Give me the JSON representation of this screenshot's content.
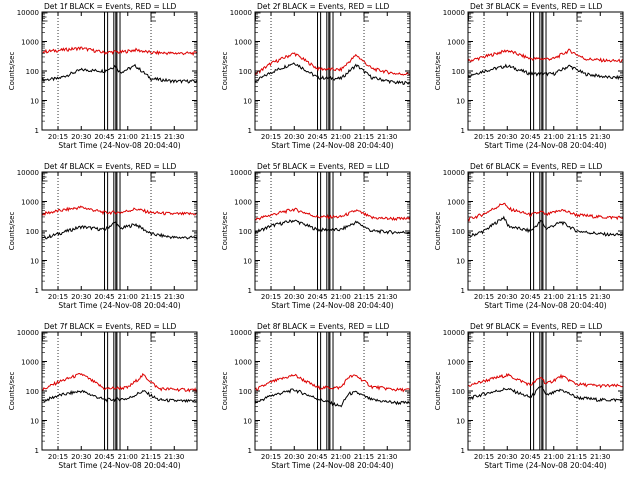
{
  "figure_note": "3x3 grid of detector count-rate plots",
  "colors": {
    "events": "#000000",
    "lld": "#dd0000",
    "axes": "#000000",
    "background": "#ffffff"
  },
  "chart_data": [
    {
      "type": "line",
      "title": "Det 1f BLACK = Events, RED = LLD",
      "xlabel": "Start Time (24-Nov-08 20:04:40)",
      "ylabel": "Counts/sec",
      "y_scale": "log",
      "ylim": [
        1,
        10000
      ],
      "ytick_labels": [
        "1",
        "10",
        "100",
        "1000",
        "10000"
      ],
      "xlim_minutes": [
        0,
        100
      ],
      "xtick_labels": [
        "20:15",
        "20:30",
        "20:45",
        "21:00",
        "21:15",
        "21:30"
      ],
      "markers": {
        "dotted_vlines": [
          "20:15",
          "21:15"
        ],
        "gap_boxes": [
          [
            "20:45",
            "20:47"
          ],
          [
            "20:51",
            "20:52"
          ],
          [
            "20:53",
            "20:55"
          ]
        ],
        "tick_E": [
          "20:05",
          "21:15"
        ]
      },
      "series": [
        {
          "name": "Events",
          "color": "#000000",
          "x": [
            "20:05",
            "20:15",
            "20:30",
            "20:45",
            "20:52",
            "20:55",
            "21:05",
            "21:15",
            "21:30",
            "21:36"
          ],
          "values": [
            50,
            55,
            110,
            100,
            150,
            90,
            150,
            55,
            45,
            45
          ]
        },
        {
          "name": "LLD",
          "color": "#dd0000",
          "x": [
            "20:05",
            "20:15",
            "20:30",
            "20:45",
            "20:52",
            "20:55",
            "21:05",
            "21:15",
            "21:30",
            "21:36"
          ],
          "values": [
            450,
            500,
            600,
            420,
            450,
            430,
            520,
            420,
            400,
            400
          ]
        }
      ]
    },
    {
      "type": "line",
      "title": "Det 2f BLACK = Events, RED = LLD",
      "xlabel": "Start Time (24-Nov-08 20:04:40)",
      "ylabel": "Counts/sec",
      "y_scale": "log",
      "ylim": [
        1,
        10000
      ],
      "ytick_labels": [
        "1",
        "10",
        "100",
        "1000",
        "10000"
      ],
      "xlim_minutes": [
        0,
        100
      ],
      "xtick_labels": [
        "20:15",
        "20:30",
        "20:45",
        "21:00",
        "21:15",
        "21:30"
      ],
      "markers": {
        "dotted_vlines": [
          "20:15",
          "21:15"
        ],
        "gap_boxes": [
          [
            "20:45",
            "20:47"
          ],
          [
            "20:51",
            "20:52"
          ],
          [
            "20:53",
            "20:55"
          ]
        ],
        "tick_E": [
          "20:05",
          "21:15"
        ]
      },
      "series": [
        {
          "name": "Events",
          "color": "#000000",
          "x": [
            "20:05",
            "20:15",
            "20:30",
            "20:45",
            "21:00",
            "21:10",
            "21:20",
            "21:36"
          ],
          "values": [
            45,
            90,
            190,
            60,
            55,
            160,
            60,
            40
          ]
        },
        {
          "name": "LLD",
          "color": "#dd0000",
          "x": [
            "20:05",
            "20:15",
            "20:30",
            "20:45",
            "21:00",
            "21:10",
            "21:20",
            "21:36"
          ],
          "values": [
            80,
            180,
            400,
            120,
            110,
            350,
            120,
            80
          ]
        }
      ]
    },
    {
      "type": "line",
      "title": "Det 3f BLACK = Events, RED = LLD",
      "xlabel": "Start Time (24-Nov-08 20:04:40)",
      "ylabel": "Counts/sec",
      "y_scale": "log",
      "ylim": [
        1,
        10000
      ],
      "ytick_labels": [
        "1",
        "10",
        "100",
        "1000",
        "10000"
      ],
      "xlim_minutes": [
        0,
        100
      ],
      "xtick_labels": [
        "20:15",
        "20:30",
        "20:45",
        "21:00",
        "21:15",
        "21:30"
      ],
      "markers": {
        "dotted_vlines": [
          "20:15",
          "21:15"
        ],
        "gap_boxes": [
          [
            "20:45",
            "20:47"
          ],
          [
            "20:51",
            "20:52"
          ],
          [
            "20:53",
            "20:55"
          ]
        ],
        "tick_E": [
          "20:05",
          "21:15"
        ]
      },
      "series": [
        {
          "name": "Events",
          "color": "#000000",
          "x": [
            "20:05",
            "20:15",
            "20:30",
            "20:45",
            "21:00",
            "21:10",
            "21:20",
            "21:36"
          ],
          "values": [
            70,
            100,
            150,
            80,
            80,
            150,
            80,
            60
          ]
        },
        {
          "name": "LLD",
          "color": "#dd0000",
          "x": [
            "20:05",
            "20:15",
            "20:30",
            "20:45",
            "21:00",
            "21:10",
            "21:20",
            "21:36"
          ],
          "values": [
            220,
            300,
            500,
            260,
            260,
            500,
            260,
            220
          ]
        }
      ]
    },
    {
      "type": "line",
      "title": "Det 4f BLACK = Events, RED = LLD",
      "xlabel": "Start Time (24-Nov-08 20:04:40)",
      "ylabel": "Counts/sec",
      "y_scale": "log",
      "ylim": [
        1,
        10000
      ],
      "ytick_labels": [
        "1",
        "10",
        "100",
        "1000",
        "10000"
      ],
      "xlim_minutes": [
        0,
        100
      ],
      "xtick_labels": [
        "20:15",
        "20:30",
        "20:45",
        "21:00",
        "21:15",
        "21:30"
      ],
      "markers": {
        "dotted_vlines": [
          "20:15",
          "21:15"
        ],
        "gap_boxes": [
          [
            "20:45",
            "20:47"
          ],
          [
            "20:51",
            "20:52"
          ],
          [
            "20:53",
            "20:55"
          ]
        ],
        "tick_E": [
          "20:05",
          "21:15"
        ]
      },
      "series": [
        {
          "name": "Events",
          "color": "#000000",
          "x": [
            "20:05",
            "20:15",
            "20:30",
            "20:45",
            "20:52",
            "20:55",
            "21:05",
            "21:15",
            "21:30",
            "21:36"
          ],
          "values": [
            55,
            80,
            140,
            110,
            200,
            120,
            170,
            80,
            60,
            60
          ]
        },
        {
          "name": "LLD",
          "color": "#dd0000",
          "x": [
            "20:05",
            "20:15",
            "20:30",
            "20:45",
            "20:52",
            "20:55",
            "21:05",
            "21:15",
            "21:30",
            "21:36"
          ],
          "values": [
            380,
            480,
            640,
            420,
            430,
            420,
            560,
            420,
            380,
            380
          ]
        }
      ]
    },
    {
      "type": "line",
      "title": "Det 5f BLACK = Events, RED = LLD",
      "xlabel": "Start Time (24-Nov-08 20:04:40)",
      "ylabel": "Counts/sec",
      "y_scale": "log",
      "ylim": [
        1,
        10000
      ],
      "ytick_labels": [
        "1",
        "10",
        "100",
        "1000",
        "10000"
      ],
      "xlim_minutes": [
        0,
        100
      ],
      "xtick_labels": [
        "20:15",
        "20:30",
        "20:45",
        "21:00",
        "21:15",
        "21:30"
      ],
      "markers": {
        "dotted_vlines": [
          "20:15",
          "21:15"
        ],
        "gap_boxes": [
          [
            "20:45",
            "20:47"
          ],
          [
            "20:51",
            "20:52"
          ],
          [
            "20:53",
            "20:55"
          ]
        ],
        "tick_E": [
          "20:05",
          "21:15"
        ]
      },
      "series": [
        {
          "name": "Events",
          "color": "#000000",
          "x": [
            "20:05",
            "20:15",
            "20:30",
            "20:45",
            "21:00",
            "21:10",
            "21:20",
            "21:36"
          ],
          "values": [
            90,
            150,
            230,
            110,
            110,
            200,
            100,
            90
          ]
        },
        {
          "name": "LLD",
          "color": "#dd0000",
          "x": [
            "20:05",
            "20:15",
            "20:30",
            "20:45",
            "21:00",
            "21:10",
            "21:20",
            "21:36"
          ],
          "values": [
            250,
            350,
            550,
            300,
            300,
            500,
            280,
            260
          ]
        }
      ]
    },
    {
      "type": "line",
      "title": "Det 6f BLACK = Events, RED = LLD",
      "xlabel": "Start Time (24-Nov-08 20:04:40)",
      "ylabel": "Counts/sec",
      "y_scale": "log",
      "ylim": [
        1,
        10000
      ],
      "ytick_labels": [
        "1",
        "10",
        "100",
        "1000",
        "10000"
      ],
      "xlim_minutes": [
        0,
        100
      ],
      "xtick_labels": [
        "20:15",
        "20:30",
        "20:45",
        "21:00",
        "21:15",
        "21:30"
      ],
      "markers": {
        "dotted_vlines": [
          "20:15",
          "21:15"
        ],
        "gap_boxes": [
          [
            "20:45",
            "20:47"
          ],
          [
            "20:51",
            "20:52"
          ],
          [
            "20:53",
            "20:55"
          ]
        ],
        "tick_E": [
          "20:05",
          "21:15"
        ]
      },
      "series": [
        {
          "name": "Events",
          "color": "#000000",
          "x": [
            "20:05",
            "20:15",
            "20:28",
            "20:30",
            "20:32",
            "20:45",
            "20:52",
            "20:55",
            "21:05",
            "21:15",
            "21:30",
            "21:36"
          ],
          "values": [
            65,
            100,
            300,
            160,
            140,
            100,
            220,
            120,
            200,
            100,
            80,
            75
          ]
        },
        {
          "name": "LLD",
          "color": "#dd0000",
          "x": [
            "20:05",
            "20:15",
            "20:28",
            "20:30",
            "20:32",
            "20:45",
            "20:52",
            "20:55",
            "21:05",
            "21:15",
            "21:30",
            "21:36"
          ],
          "values": [
            250,
            380,
            900,
            600,
            550,
            350,
            450,
            350,
            520,
            350,
            300,
            290
          ]
        }
      ]
    },
    {
      "type": "line",
      "title": "Det 7f BLACK = Events, RED = LLD",
      "xlabel": "Start Time (24-Nov-08 20:04:40)",
      "ylabel": "Counts/sec",
      "y_scale": "log",
      "ylim": [
        1,
        10000
      ],
      "ytick_labels": [
        "1",
        "10",
        "100",
        "1000",
        "10000"
      ],
      "xlim_minutes": [
        0,
        100
      ],
      "xtick_labels": [
        "20:15",
        "20:30",
        "20:45",
        "21:00",
        "21:15",
        "21:30"
      ],
      "markers": {
        "dotted_vlines": [
          "20:15",
          "21:15"
        ],
        "gap_boxes": [
          [
            "20:45",
            "20:47"
          ],
          [
            "20:51",
            "20:52"
          ],
          [
            "20:53",
            "20:55"
          ]
        ],
        "tick_E": [
          "20:05",
          "21:15"
        ]
      },
      "series": [
        {
          "name": "Events",
          "color": "#000000",
          "x": [
            "20:05",
            "20:15",
            "20:30",
            "20:45",
            "21:00",
            "21:10",
            "21:20",
            "21:36"
          ],
          "values": [
            45,
            70,
            100,
            50,
            55,
            100,
            50,
            45
          ]
        },
        {
          "name": "LLD",
          "color": "#dd0000",
          "x": [
            "20:05",
            "20:15",
            "20:30",
            "20:45",
            "21:00",
            "21:10",
            "21:20",
            "21:36"
          ],
          "values": [
            110,
            200,
            380,
            120,
            130,
            350,
            120,
            110
          ]
        }
      ]
    },
    {
      "type": "line",
      "title": "Det 8f BLACK = Events, RED = LLD",
      "xlabel": "Start Time (24-Nov-08 20:04:40)",
      "ylabel": "Counts/sec",
      "y_scale": "log",
      "ylim": [
        1,
        10000
      ],
      "ytick_labels": [
        "1",
        "10",
        "100",
        "1000",
        "10000"
      ],
      "xlim_minutes": [
        0,
        100
      ],
      "xtick_labels": [
        "20:15",
        "20:30",
        "20:45",
        "21:00",
        "21:15",
        "21:30"
      ],
      "markers": {
        "dotted_vlines": [
          "20:15",
          "21:15"
        ],
        "gap_boxes": [
          [
            "20:45",
            "20:47"
          ],
          [
            "20:51",
            "20:52"
          ],
          [
            "20:53",
            "20:55"
          ]
        ],
        "tick_E": [
          "20:05",
          "21:15"
        ]
      },
      "series": [
        {
          "name": "Events",
          "color": "#000000",
          "x": [
            "20:05",
            "20:15",
            "20:30",
            "20:45",
            "21:00",
            "21:05",
            "21:10",
            "21:20",
            "21:36"
          ],
          "values": [
            40,
            70,
            110,
            55,
            30,
            80,
            90,
            50,
            40
          ]
        },
        {
          "name": "LLD",
          "color": "#dd0000",
          "x": [
            "20:05",
            "20:15",
            "20:30",
            "20:45",
            "21:00",
            "21:05",
            "21:10",
            "21:20",
            "21:36"
          ],
          "values": [
            110,
            200,
            350,
            130,
            130,
            300,
            330,
            140,
            110
          ]
        }
      ]
    },
    {
      "type": "line",
      "title": "Det 9f BLACK = Events, RED = LLD",
      "xlabel": "Start Time (24-Nov-08 20:04:40)",
      "ylabel": "Counts/sec",
      "y_scale": "log",
      "ylim": [
        1,
        10000
      ],
      "ytick_labels": [
        "1",
        "10",
        "100",
        "1000",
        "10000"
      ],
      "xlim_minutes": [
        0,
        100
      ],
      "xtick_labels": [
        "20:15",
        "20:30",
        "20:45",
        "21:00",
        "21:15",
        "21:30"
      ],
      "markers": {
        "dotted_vlines": [
          "20:15",
          "21:15"
        ],
        "gap_boxes": [
          [
            "20:45",
            "20:47"
          ],
          [
            "20:51",
            "20:52"
          ],
          [
            "20:53",
            "20:55"
          ]
        ],
        "tick_E": [
          "20:05",
          "21:15"
        ]
      },
      "series": [
        {
          "name": "Events",
          "color": "#000000",
          "x": [
            "20:05",
            "20:15",
            "20:30",
            "20:45",
            "20:52",
            "20:55",
            "21:05",
            "21:15",
            "21:30",
            "21:36"
          ],
          "values": [
            55,
            80,
            120,
            60,
            150,
            70,
            110,
            60,
            50,
            50
          ]
        },
        {
          "name": "LLD",
          "color": "#dd0000",
          "x": [
            "20:05",
            "20:15",
            "20:30",
            "20:45",
            "20:52",
            "20:55",
            "21:05",
            "21:15",
            "21:30",
            "21:36"
          ],
          "values": [
            150,
            220,
            350,
            160,
            300,
            170,
            320,
            170,
            150,
            150
          ]
        }
      ]
    }
  ]
}
